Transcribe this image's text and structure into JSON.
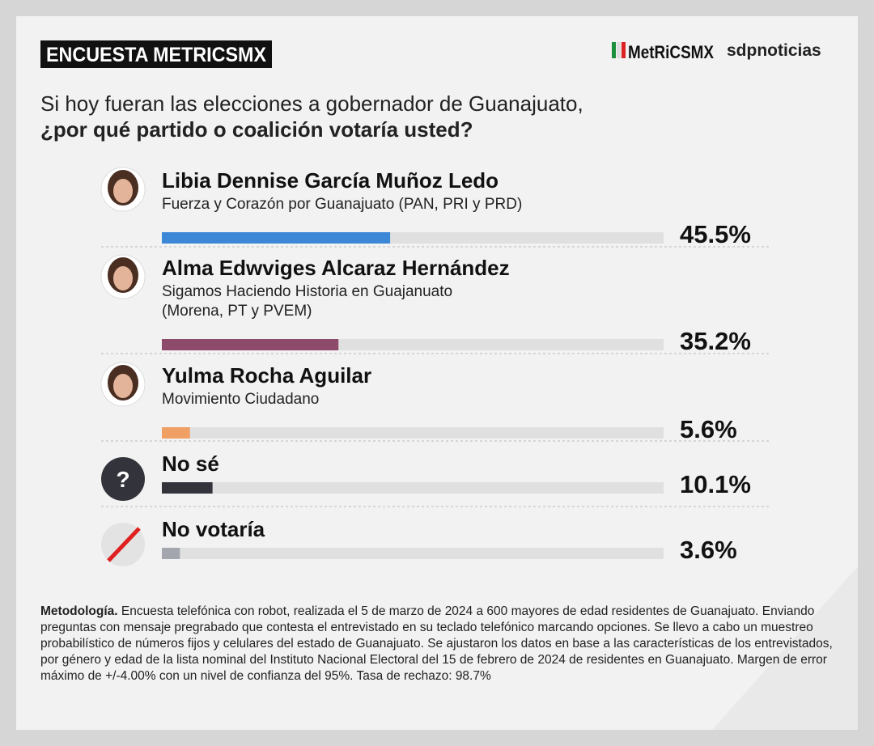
{
  "header": {
    "badge": "ENCUESTA METRICSMX",
    "logo": "MetRiCSMX",
    "partner": "sdpnoticias"
  },
  "question": {
    "line1": "Si hoy fueran las elecciones a gobernador de Guanajuato,",
    "line2": "¿por qué partido o coalición votaría usted?"
  },
  "chart_data": {
    "type": "hbar",
    "categories": [
      "Libia Dennise García Muñoz Ledo",
      "Alma Edwviges Alcaraz Hernández",
      "Yulma Rocha Aguilar",
      "No sé",
      "No votaría"
    ],
    "descriptions": [
      [
        "Fuerza y Corazón por Guanajuato (PAN, PRI y PRD)"
      ],
      [
        "Sigamos Haciendo Historia en Guajanuato",
        "(Morena, PT y PVEM)"
      ],
      [
        "Movimiento Ciudadano"
      ],
      [],
      []
    ],
    "values": [
      45.5,
      35.2,
      5.6,
      10.1,
      3.6
    ],
    "value_labels": [
      "45.5%",
      "35.2%",
      "5.6%",
      "10.1%",
      "3.6%"
    ],
    "colors": [
      "#3d88d6",
      "#8e4a6b",
      "#f0a064",
      "#33333b",
      "#a3a7ad"
    ],
    "xlim": [
      0,
      100
    ]
  },
  "methodology": {
    "label": "Metodología.",
    "text": "Encuesta telefónica con robot, realizada el 5 de marzo de 2024 a 600 mayores de edad residentes de Guanajuato. Enviando preguntas con mensaje pregrabado que contesta el entrevistado en su teclado telefónico marcando opciones. Se llevo a cabo un muestreo probabilístico de números fijos y celulares del estado de Guanajuato. Se ajustaron los datos en base a las características de los entrevistados, por género y edad de la lista nominal del Instituto Nacional Electoral del 15 de febrero de 2024 de residentes en Guanajuato. Margen de error máximo de +/-4.00% con un nivel de confianza del 95%. Tasa de rechazo: 98.7%"
  }
}
